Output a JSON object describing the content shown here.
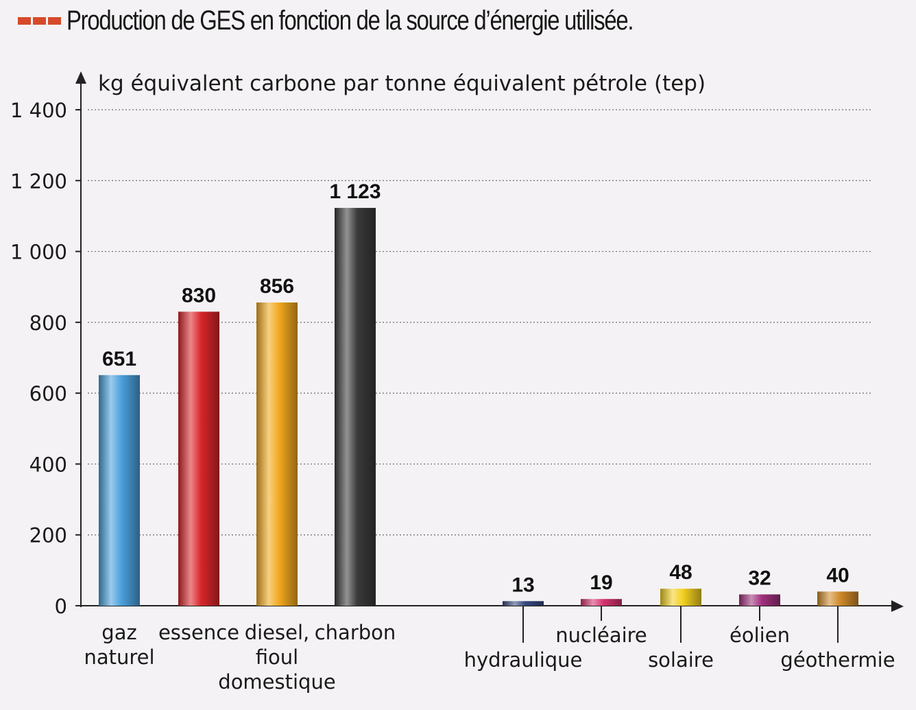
{
  "title": "Production de GES en fonction de la source d’énergie utilisée.",
  "chart_data": {
    "type": "bar",
    "ylabel": "kg équivalent carbone par tonne équivalent pétrole (tep)",
    "xlabel": "",
    "ylim": [
      0,
      1400
    ],
    "yticks": [
      "0",
      "200",
      "400",
      "600",
      "800",
      "1 000",
      "1 200",
      "1 400"
    ],
    "grid": true,
    "categories": [
      {
        "label_lines": [
          "gaz",
          "naturel"
        ],
        "value": 651,
        "value_label": "651",
        "color": "#4aa0dc",
        "group": "fossile"
      },
      {
        "label_lines": [
          "essence"
        ],
        "value": 830,
        "value_label": "830",
        "color": "#d8262a",
        "group": "fossile"
      },
      {
        "label_lines": [
          "diesel,",
          "fioul",
          "domestique"
        ],
        "value": 856,
        "value_label": "856",
        "color": "#f2a91e",
        "group": "fossile"
      },
      {
        "label_lines": [
          "charbon"
        ],
        "value": 1123,
        "value_label": "1 123",
        "color": "#3a3a3a",
        "group": "fossile"
      },
      {
        "label_lines": [
          "hydraulique"
        ],
        "value": 13,
        "value_label": "13",
        "color": "#35497e",
        "group": "renouvelable",
        "label_pos": "low"
      },
      {
        "label_lines": [
          "nucléaire"
        ],
        "value": 19,
        "value_label": "19",
        "color": "#d6336f",
        "group": "renouvelable",
        "label_pos": "high"
      },
      {
        "label_lines": [
          "solaire"
        ],
        "value": 48,
        "value_label": "48",
        "color": "#f4d021",
        "group": "renouvelable",
        "label_pos": "low"
      },
      {
        "label_lines": [
          "éolien"
        ],
        "value": 32,
        "value_label": "32",
        "color": "#a0307c",
        "group": "renouvelable",
        "label_pos": "high"
      },
      {
        "label_lines": [
          "géothermie"
        ],
        "value": 40,
        "value_label": "40",
        "color": "#cf8a2a",
        "group": "renouvelable",
        "label_pos": "low"
      }
    ]
  }
}
